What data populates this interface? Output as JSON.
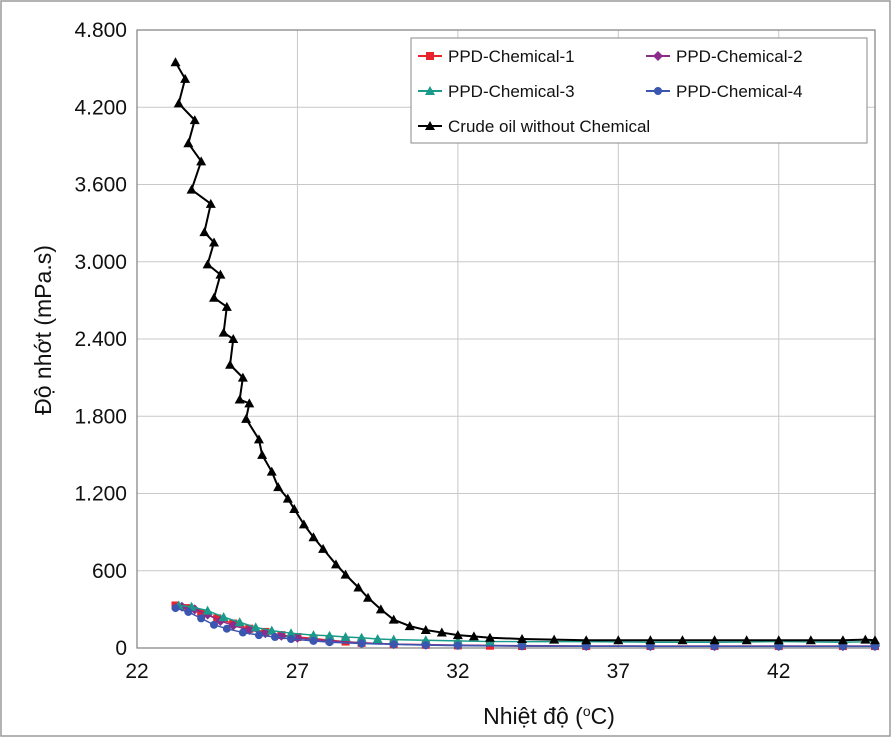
{
  "chart_data": {
    "type": "line",
    "xlabel": "Nhiệt độ (",
    "xlabel_sup": "o",
    "xlabel_suffix": "C)",
    "ylabel": "Độ nhớt (mPa.s)",
    "xlim": [
      22,
      45
    ],
    "ylim": [
      0,
      4800
    ],
    "x_ticks": [
      22,
      27,
      32,
      37,
      42
    ],
    "x_tick_labels": [
      "22",
      "27",
      "32",
      "37",
      "42"
    ],
    "y_ticks": [
      0,
      600,
      1200,
      1800,
      2400,
      3000,
      3600,
      4200,
      4800
    ],
    "y_tick_labels": [
      "0",
      "600",
      "1.200",
      "1.800",
      "2.400",
      "3.000",
      "3.600",
      "4.200",
      "4.800"
    ],
    "grid": true,
    "legend_position": "top-right",
    "series": [
      {
        "name": "PPD-Chemical-1",
        "color": "#e8232a",
        "marker": "square",
        "x": [
          23.2,
          23.6,
          24.0,
          24.5,
          25.0,
          25.5,
          26.0,
          26.5,
          27.0,
          27.5,
          28.0,
          28.5,
          29.0,
          30.0,
          31.0,
          32.0,
          33.0,
          34.0,
          36.0,
          38.0,
          40.0,
          42.0,
          44.0,
          45.0
        ],
        "y": [
          330,
          310,
          270,
          230,
          190,
          150,
          125,
          100,
          85,
          75,
          60,
          50,
          40,
          30,
          25,
          20,
          18,
          15,
          15,
          15,
          15,
          15,
          15,
          15
        ]
      },
      {
        "name": "PPD-Chemical-2",
        "color": "#8b2b8b",
        "marker": "diamond",
        "x": [
          23.4,
          23.8,
          24.2,
          24.6,
          25.0,
          25.5,
          26.0,
          26.5,
          27.0,
          27.5,
          28.0,
          29.0,
          30.0,
          31.0,
          32.0,
          34.0,
          36.0,
          38.0,
          40.0,
          42.0,
          44.0,
          45.0
        ],
        "y": [
          320,
          300,
          260,
          210,
          175,
          140,
          115,
          95,
          80,
          65,
          55,
          40,
          30,
          25,
          22,
          18,
          16,
          15,
          15,
          15,
          15,
          15
        ]
      },
      {
        "name": "PPD-Chemical-3",
        "color": "#1a9a8a",
        "marker": "triangle",
        "x": [
          23.3,
          23.7,
          24.2,
          24.7,
          25.2,
          25.7,
          26.2,
          26.8,
          27.5,
          28.0,
          28.5,
          29.0,
          29.5,
          30.0,
          31.0,
          32.0,
          33.0,
          34.0,
          36.0,
          38.0,
          40.0,
          42.0,
          44.0,
          45.0
        ],
        "y": [
          330,
          320,
          290,
          240,
          200,
          160,
          135,
          115,
          100,
          95,
          85,
          80,
          70,
          65,
          60,
          55,
          50,
          50,
          50,
          45,
          45,
          50,
          45,
          50
        ]
      },
      {
        "name": "PPD-Chemical-4",
        "color": "#3a56b0",
        "marker": "circle",
        "x": [
          23.2,
          23.6,
          24.0,
          24.4,
          24.8,
          25.3,
          25.8,
          26.3,
          26.8,
          27.5,
          28.0,
          29.0,
          30.0,
          31.0,
          32.0,
          34.0,
          36.0,
          38.0,
          40.0,
          42.0,
          44.0,
          45.0
        ],
        "y": [
          310,
          280,
          230,
          180,
          150,
          120,
          100,
          85,
          70,
          55,
          45,
          35,
          28,
          22,
          18,
          15,
          14,
          13,
          13,
          13,
          13,
          13
        ]
      },
      {
        "name": "Crude oil without Chemical",
        "color": "#000000",
        "marker": "triangle",
        "x": [
          23.2,
          23.5,
          23.3,
          23.8,
          23.6,
          24.0,
          23.7,
          24.3,
          24.1,
          24.4,
          24.2,
          24.6,
          24.4,
          24.8,
          24.7,
          25.0,
          24.9,
          25.3,
          25.2,
          25.5,
          25.4,
          25.8,
          25.9,
          26.2,
          26.4,
          26.7,
          26.9,
          27.2,
          27.5,
          27.8,
          28.2,
          28.5,
          28.9,
          29.2,
          29.6,
          30.0,
          30.5,
          31.0,
          31.5,
          32.0,
          32.5,
          33.0,
          34.0,
          35.0,
          36.0,
          37.0,
          38.0,
          39.0,
          40.0,
          41.0,
          42.0,
          43.0,
          44.0,
          44.7,
          45.0
        ],
        "y": [
          4550,
          4420,
          4230,
          4100,
          3920,
          3780,
          3560,
          3450,
          3230,
          3150,
          2980,
          2900,
          2720,
          2650,
          2450,
          2400,
          2200,
          2100,
          1930,
          1900,
          1780,
          1620,
          1500,
          1370,
          1250,
          1160,
          1080,
          960,
          860,
          770,
          650,
          570,
          470,
          390,
          300,
          220,
          170,
          140,
          120,
          100,
          90,
          80,
          70,
          65,
          60,
          60,
          60,
          60,
          60,
          60,
          60,
          60,
          60,
          65,
          60
        ]
      }
    ]
  }
}
